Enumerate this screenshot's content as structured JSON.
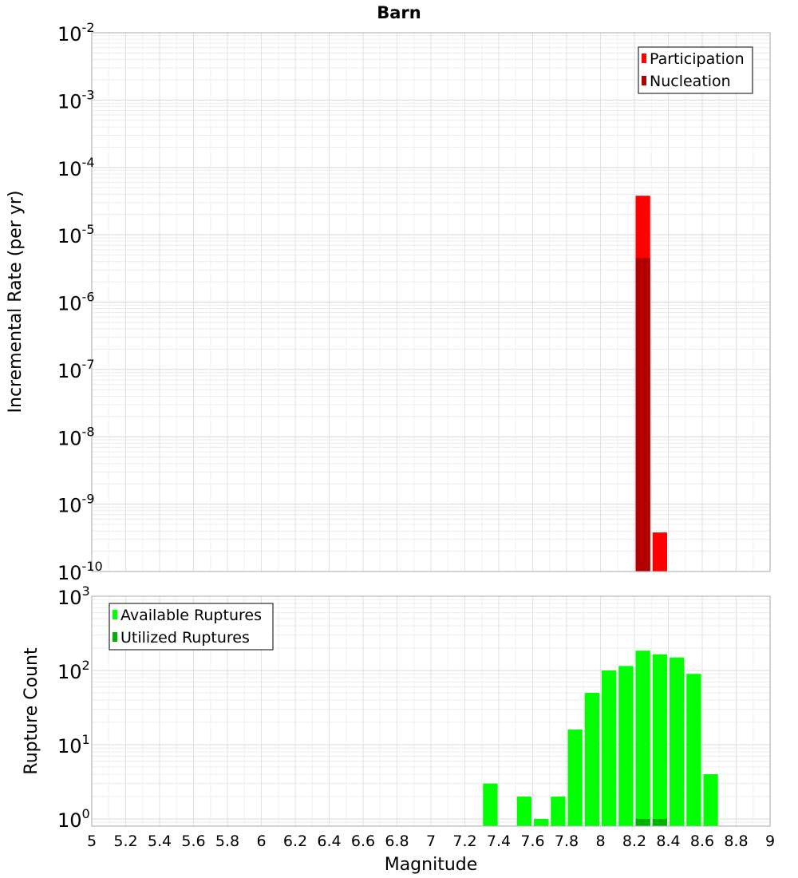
{
  "chart_data": [
    {
      "type": "bar",
      "title": "Barn",
      "xlabel": "",
      "ylabel": "Incremental Rate (per yr)",
      "yscale": "log",
      "ylim": [
        1e-10,
        0.01
      ],
      "ytick_labels": [
        {
          "base": "10",
          "exp": "-10"
        },
        {
          "base": "10",
          "exp": "-9"
        },
        {
          "base": "10",
          "exp": "-8"
        },
        {
          "base": "10",
          "exp": "-7"
        },
        {
          "base": "10",
          "exp": "-6"
        },
        {
          "base": "10",
          "exp": "-5"
        },
        {
          "base": "10",
          "exp": "-4"
        },
        {
          "base": "10",
          "exp": "-3"
        },
        {
          "base": "10",
          "exp": "-2"
        }
      ],
      "xlim": [
        5,
        9
      ],
      "bin_width": 0.1,
      "grid": true,
      "legend": "top-right",
      "series": [
        {
          "name": "Participation",
          "color": "#ff0000",
          "x": [
            8.25,
            8.35
          ],
          "values": [
            3.8e-05,
            3.8e-10
          ]
        },
        {
          "name": "Nucleation",
          "color": "#b20000",
          "x": [
            8.25
          ],
          "values": [
            4.5e-06
          ]
        }
      ]
    },
    {
      "type": "bar",
      "title": "",
      "xlabel": "Magnitude",
      "ylabel": "Rupture Count",
      "yscale": "log",
      "ylim": [
        0.8,
        1000
      ],
      "ytick_labels": [
        {
          "base": "10",
          "exp": "0"
        },
        {
          "base": "10",
          "exp": "1"
        },
        {
          "base": "10",
          "exp": "2"
        },
        {
          "base": "10",
          "exp": "3"
        }
      ],
      "xlim": [
        5,
        9
      ],
      "xtick_labels": [
        "5",
        "5.2",
        "5.4",
        "5.6",
        "5.8",
        "6",
        "6.2",
        "6.4",
        "6.6",
        "6.8",
        "7",
        "7.2",
        "7.4",
        "7.6",
        "7.8",
        "8",
        "8.2",
        "8.4",
        "8.6",
        "8.8",
        "9"
      ],
      "bin_width": 0.1,
      "grid": true,
      "legend": "top-left",
      "series": [
        {
          "name": "Available Ruptures",
          "color": "#00ff00",
          "x": [
            7.35,
            7.55,
            7.65,
            7.75,
            7.85,
            7.95,
            8.05,
            8.15,
            8.25,
            8.35,
            8.45,
            8.55,
            8.65
          ],
          "values": [
            3,
            2,
            1,
            2,
            16,
            50,
            100,
            115,
            185,
            165,
            150,
            90,
            4
          ]
        },
        {
          "name": "Utilized Ruptures",
          "color": "#00b200",
          "x": [
            8.25,
            8.35
          ],
          "values": [
            1,
            1
          ]
        }
      ]
    }
  ]
}
